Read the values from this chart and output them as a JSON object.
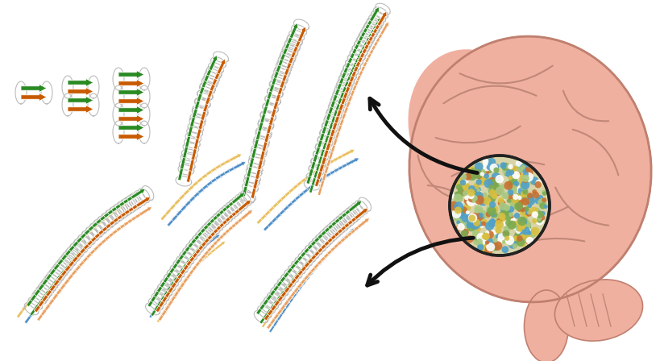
{
  "bg_color": "#ffffff",
  "figsize": [
    8.2,
    4.48
  ],
  "dpi": 100,
  "orange": "#c85a00",
  "green": "#2a8a22",
  "yellow": "#e8c060",
  "blue": "#5090c8",
  "light_orange": "#e8a060",
  "brain_color": "#f0b0a0",
  "brain_edge": "#c08070",
  "gyri_color": "#c08878",
  "circle_bg": "#d8d4a8",
  "circle_edge": "#222222",
  "arrow_color": "#111111"
}
